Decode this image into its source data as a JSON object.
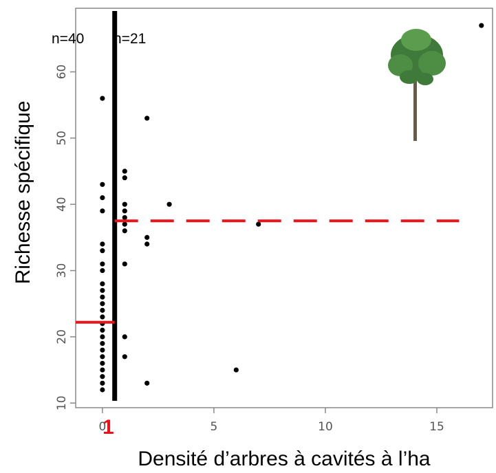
{
  "chart_data": {
    "type": "scatter",
    "xlabel": "Densité d’arbres à cavités à l’ha",
    "ylabel": "Richesse spécifique",
    "xlim": [
      -1.2,
      17.5
    ],
    "ylim": [
      9.3,
      69.6
    ],
    "x_ticks": [
      0,
      5,
      10,
      15
    ],
    "y_ticks": [
      10,
      20,
      30,
      40,
      50,
      60
    ],
    "grid": false,
    "points": [
      [
        0,
        12
      ],
      [
        0,
        13
      ],
      [
        0,
        14
      ],
      [
        0,
        15
      ],
      [
        0,
        16
      ],
      [
        0,
        17
      ],
      [
        0,
        18
      ],
      [
        0,
        19
      ],
      [
        0,
        20
      ],
      [
        0,
        21
      ],
      [
        0,
        22
      ],
      [
        0,
        23
      ],
      [
        0,
        24
      ],
      [
        0,
        25
      ],
      [
        0,
        26
      ],
      [
        0,
        27
      ],
      [
        0,
        28
      ],
      [
        0,
        30
      ],
      [
        0,
        31
      ],
      [
        0,
        33
      ],
      [
        0,
        34
      ],
      [
        0,
        39
      ],
      [
        0,
        41
      ],
      [
        0,
        43
      ],
      [
        0,
        56
      ],
      [
        1,
        17
      ],
      [
        1,
        20
      ],
      [
        1,
        31
      ],
      [
        1,
        36
      ],
      [
        1,
        37
      ],
      [
        1,
        38
      ],
      [
        1,
        39
      ],
      [
        1,
        40
      ],
      [
        1,
        44
      ],
      [
        1,
        45
      ],
      [
        2,
        13
      ],
      [
        2,
        34
      ],
      [
        2,
        35
      ],
      [
        2,
        53
      ],
      [
        3,
        40
      ],
      [
        6,
        15
      ],
      [
        7,
        37
      ],
      [
        17,
        67
      ]
    ],
    "threshold_x": 0.55,
    "threshold_label": "1",
    "mean_left": {
      "y": 22.2,
      "x_from": -1.2,
      "x_to": 0.55
    },
    "mean_right": {
      "y": 37.5,
      "x_from": 0.55,
      "x_to": 16
    },
    "group_labels": [
      "n=40",
      "n=21"
    ],
    "colors": {
      "points": "#000000",
      "threshold_line": "#000000",
      "mean_lines": "#e8141b",
      "axis": "#888888"
    }
  },
  "decoration": {
    "image": "tree-icon"
  }
}
